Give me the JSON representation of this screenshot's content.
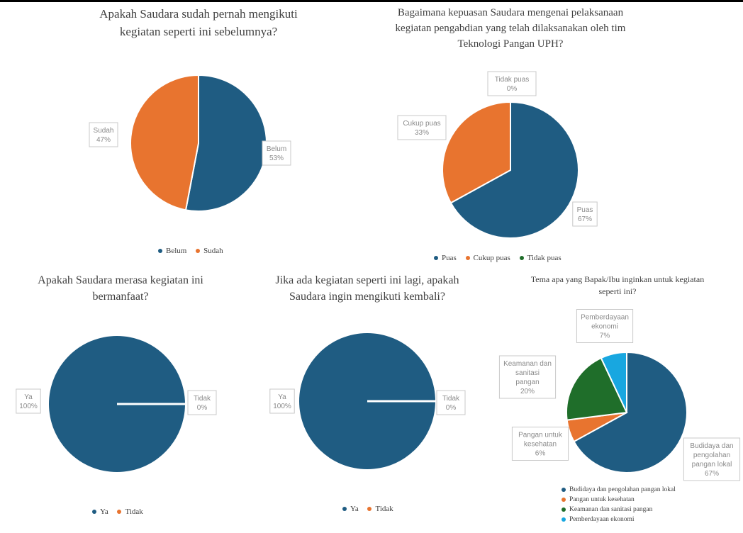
{
  "colors": {
    "blue": "#1f5c82",
    "orange": "#e8742f",
    "green": "#1f6e2a",
    "lightblue": "#18a7e0"
  },
  "chart_data": [
    {
      "type": "pie",
      "title": "Apakah Saudara sudah pernah mengikuti\nkegiatan seperti ini sebelumnya?",
      "slices": [
        {
          "name": "Belum",
          "value": 53,
          "label_lines": [
            "Belum",
            "53%"
          ],
          "color": "#1f5c82"
        },
        {
          "name": "Sudah",
          "value": 47,
          "label_lines": [
            "Sudah",
            "47%"
          ],
          "color": "#e8742f"
        }
      ],
      "legend": [
        "Belum",
        "Sudah"
      ],
      "legend_position": "bottom"
    },
    {
      "type": "pie",
      "title": "Bagaimana kepuasan Saudara mengenai pelaksanaan\nkegiatan pengabdian yang telah dilaksanakan oleh tim\nTeknologi Pangan UPH?",
      "slices": [
        {
          "name": "Puas",
          "value": 67,
          "label_lines": [
            "Puas",
            "67%"
          ],
          "color": "#1f5c82"
        },
        {
          "name": "Cukup puas",
          "value": 33,
          "label_lines": [
            "Cukup puas",
            "33%"
          ],
          "color": "#e8742f"
        },
        {
          "name": "Tidak puas",
          "value": 0,
          "label_lines": [
            "Tidak puas",
            "0%"
          ],
          "color": "#1f6e2a"
        }
      ],
      "legend": [
        "Puas",
        "Cukup puas",
        "Tidak puas"
      ],
      "legend_position": "bottom"
    },
    {
      "type": "pie",
      "title": "Apakah Saudara merasa kegiatan ini\nbermanfaat?",
      "slices": [
        {
          "name": "Ya",
          "value": 100,
          "label_lines": [
            "Ya",
            "100%"
          ],
          "color": "#1f5c82"
        },
        {
          "name": "Tidak",
          "value": 0,
          "label_lines": [
            "Tidak",
            "0%"
          ],
          "color": "#e8742f"
        }
      ],
      "legend": [
        "Ya",
        "Tidak"
      ],
      "legend_position": "bottom"
    },
    {
      "type": "pie",
      "title": "Jika ada kegiatan seperti ini lagi, apakah\nSaudara ingin mengikuti kembali?",
      "slices": [
        {
          "name": "Ya",
          "value": 100,
          "label_lines": [
            "Ya",
            "100%"
          ],
          "color": "#1f5c82"
        },
        {
          "name": "Tidak",
          "value": 0,
          "label_lines": [
            "Tidak",
            "0%"
          ],
          "color": "#e8742f"
        }
      ],
      "legend": [
        "Ya",
        "Tidak"
      ],
      "legend_position": "bottom"
    },
    {
      "type": "pie",
      "title": "Tema apa yang Bapak/Ibu inginkan untuk kegiatan\nseperti ini?",
      "slices": [
        {
          "name": "Budidaya dan pengolahan pangan lokal",
          "value": 67,
          "label_lines": [
            "Budidaya dan",
            "pengolahan",
            "pangan lokal",
            "67%"
          ],
          "color": "#1f5c82"
        },
        {
          "name": "Pangan untuk kesehatan",
          "value": 6,
          "label_lines": [
            "Pangan untuk",
            "kesehatan",
            "6%"
          ],
          "color": "#e8742f"
        },
        {
          "name": "Keamanan dan sanitasi pangan",
          "value": 20,
          "label_lines": [
            "Keamanan dan",
            "sanitasi",
            "pangan",
            "20%"
          ],
          "color": "#1f6e2a"
        },
        {
          "name": "Pemberdayaan ekonomi",
          "value": 7,
          "label_lines": [
            "Pemberdayaan",
            "ekonomi",
            "7%"
          ],
          "color": "#18a7e0"
        }
      ],
      "legend": [
        "Budidaya dan pengolahan pangan lokal",
        "Pangan untuk kesehatan",
        "Keamanan dan sanitasi pangan",
        "Pemberdayaan ekonomi"
      ],
      "legend_position": "bottom"
    }
  ]
}
